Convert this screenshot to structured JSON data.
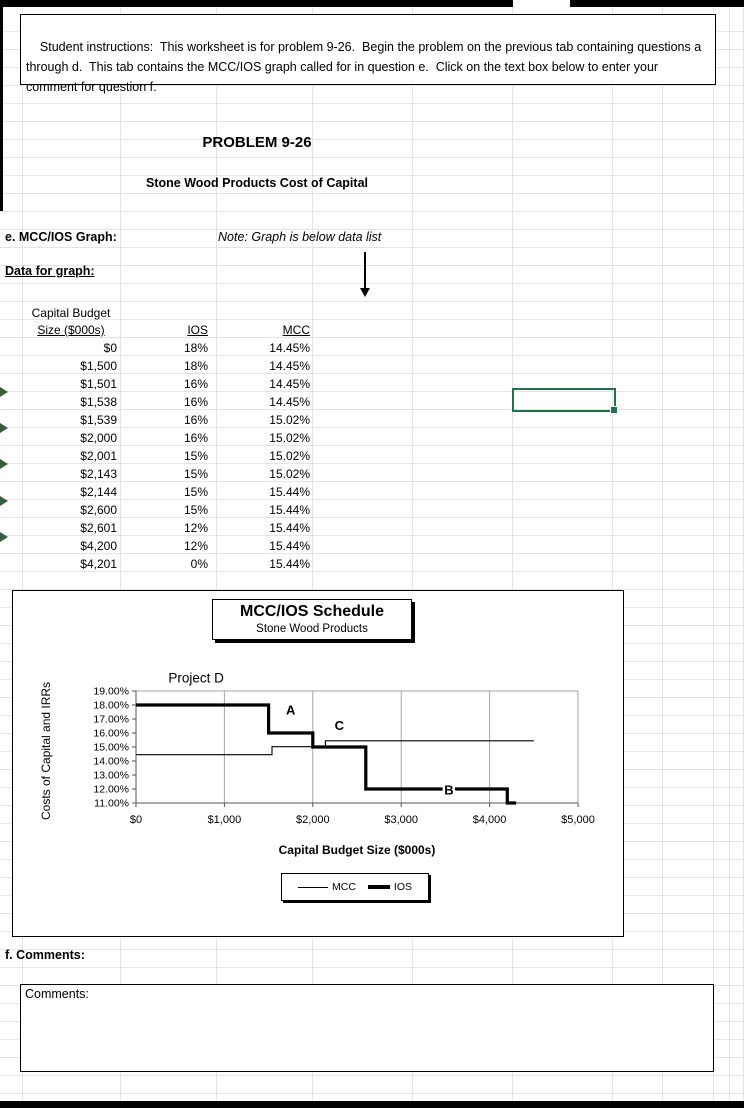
{
  "instructions": "Student instructions:  This worksheet is for problem 9-26.  Begin the problem on the previous tab containing questions a through d.  This tab contains the MCC/IOS graph called for in question e.  Click on the text box below to enter your comment for question f.",
  "header": {
    "title": "PROBLEM 9-26",
    "subtitle": "Stone Wood Products Cost of Capital"
  },
  "section_e": {
    "label": "e.  MCC/IOS Graph:",
    "note": "Note:  Graph is below data list",
    "data_list_label": "Data for graph:"
  },
  "table": {
    "headers": {
      "col1_line1": "Capital Budget",
      "col1_line2": "Size ($000s)",
      "col2": "IOS",
      "col3": "MCC"
    },
    "rows": [
      {
        "size": "$0",
        "ios": "18%",
        "mcc": "14.45%"
      },
      {
        "size": "$1,500",
        "ios": "18%",
        "mcc": "14.45%"
      },
      {
        "size": "$1,501",
        "ios": "16%",
        "mcc": "14.45%"
      },
      {
        "size": "$1,538",
        "ios": "16%",
        "mcc": "14.45%"
      },
      {
        "size": "$1,539",
        "ios": "16%",
        "mcc": "15.02%"
      },
      {
        "size": "$2,000",
        "ios": "16%",
        "mcc": "15.02%"
      },
      {
        "size": "$2,001",
        "ios": "15%",
        "mcc": "15.02%"
      },
      {
        "size": "$2,143",
        "ios": "15%",
        "mcc": "15.02%"
      },
      {
        "size": "$2,144",
        "ios": "15%",
        "mcc": "15.44%"
      },
      {
        "size": "$2,600",
        "ios": "15%",
        "mcc": "15.44%"
      },
      {
        "size": "$2,601",
        "ios": "12%",
        "mcc": "15.44%"
      },
      {
        "size": "$4,200",
        "ios": "12%",
        "mcc": "15.44%"
      },
      {
        "size": "$4,201",
        "ios": "0%",
        "mcc": "15.44%"
      }
    ]
  },
  "chart_data": {
    "type": "line",
    "title": "MCC/IOS Schedule",
    "subtitle": "Stone Wood Products",
    "xlabel": "Capital Budget Size ($000s)",
    "ylabel": "Costs of Capital and IRRs",
    "xlim": [
      0,
      5000
    ],
    "ylim": [
      11,
      19
    ],
    "x_ticks": [
      "$0",
      "$1,000",
      "$2,000",
      "$3,000",
      "$4,000",
      "$5,000"
    ],
    "x_tick_values": [
      0,
      1000,
      2000,
      3000,
      4000,
      5000
    ],
    "y_ticks": [
      "19.00%",
      "18.00%",
      "17.00%",
      "16.00%",
      "15.00%",
      "14.00%",
      "13.00%",
      "12.00%",
      "11.00%"
    ],
    "y_tick_values": [
      19,
      18,
      17,
      16,
      15,
      14,
      13,
      12,
      11
    ],
    "grid": "vertical",
    "legend_position": "bottom",
    "series": [
      {
        "name": "MCC",
        "style": "thin",
        "points": [
          [
            0,
            14.45
          ],
          [
            1538,
            14.45
          ],
          [
            1538,
            15.02
          ],
          [
            2143,
            15.02
          ],
          [
            2143,
            15.44
          ],
          [
            4500,
            15.44
          ]
        ]
      },
      {
        "name": "IOS",
        "style": "thick",
        "points": [
          [
            0,
            18
          ],
          [
            1500,
            18
          ],
          [
            1500,
            16
          ],
          [
            2000,
            16
          ],
          [
            2000,
            15
          ],
          [
            2600,
            15
          ],
          [
            2600,
            12
          ],
          [
            4200,
            12
          ],
          [
            4200,
            0
          ],
          [
            4300,
            0
          ]
        ]
      }
    ],
    "annotations": [
      {
        "text": "Project D",
        "x": 680,
        "y": 19.9,
        "bold": false
      },
      {
        "text": "A",
        "x": 1750,
        "y": 17.6,
        "bold": true
      },
      {
        "text": "C",
        "x": 2300,
        "y": 16.5,
        "bold": true
      },
      {
        "text": "B",
        "x": 3540,
        "y": 11.9,
        "bold": true
      }
    ],
    "legend": [
      "MCC",
      "IOS"
    ]
  },
  "section_f": {
    "label": "f.  Comments:",
    "comments_label": "Comments:"
  }
}
